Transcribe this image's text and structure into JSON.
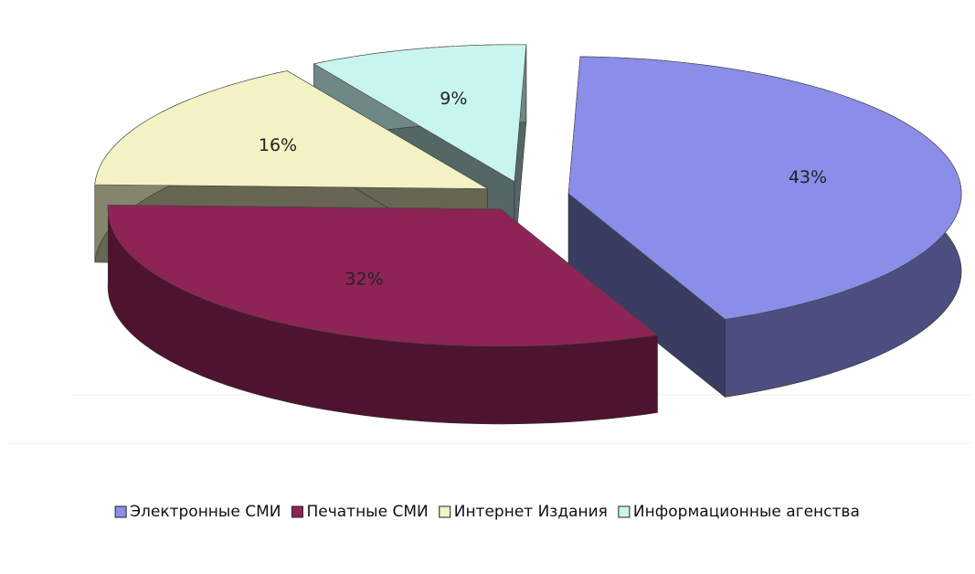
{
  "chart_data": {
    "type": "pie",
    "categories": [
      "Электронные СМИ",
      "Печатные СМИ",
      "Интернет Издания",
      "Информационные агенства"
    ],
    "values": [
      43,
      32,
      16,
      9
    ],
    "value_labels": [
      "43%",
      "32%",
      "16%",
      "9%"
    ],
    "colors": [
      "#8a8ee8",
      "#8e2456",
      "#f2f2c4",
      "#c9f5f1"
    ],
    "legend": "bottom"
  }
}
